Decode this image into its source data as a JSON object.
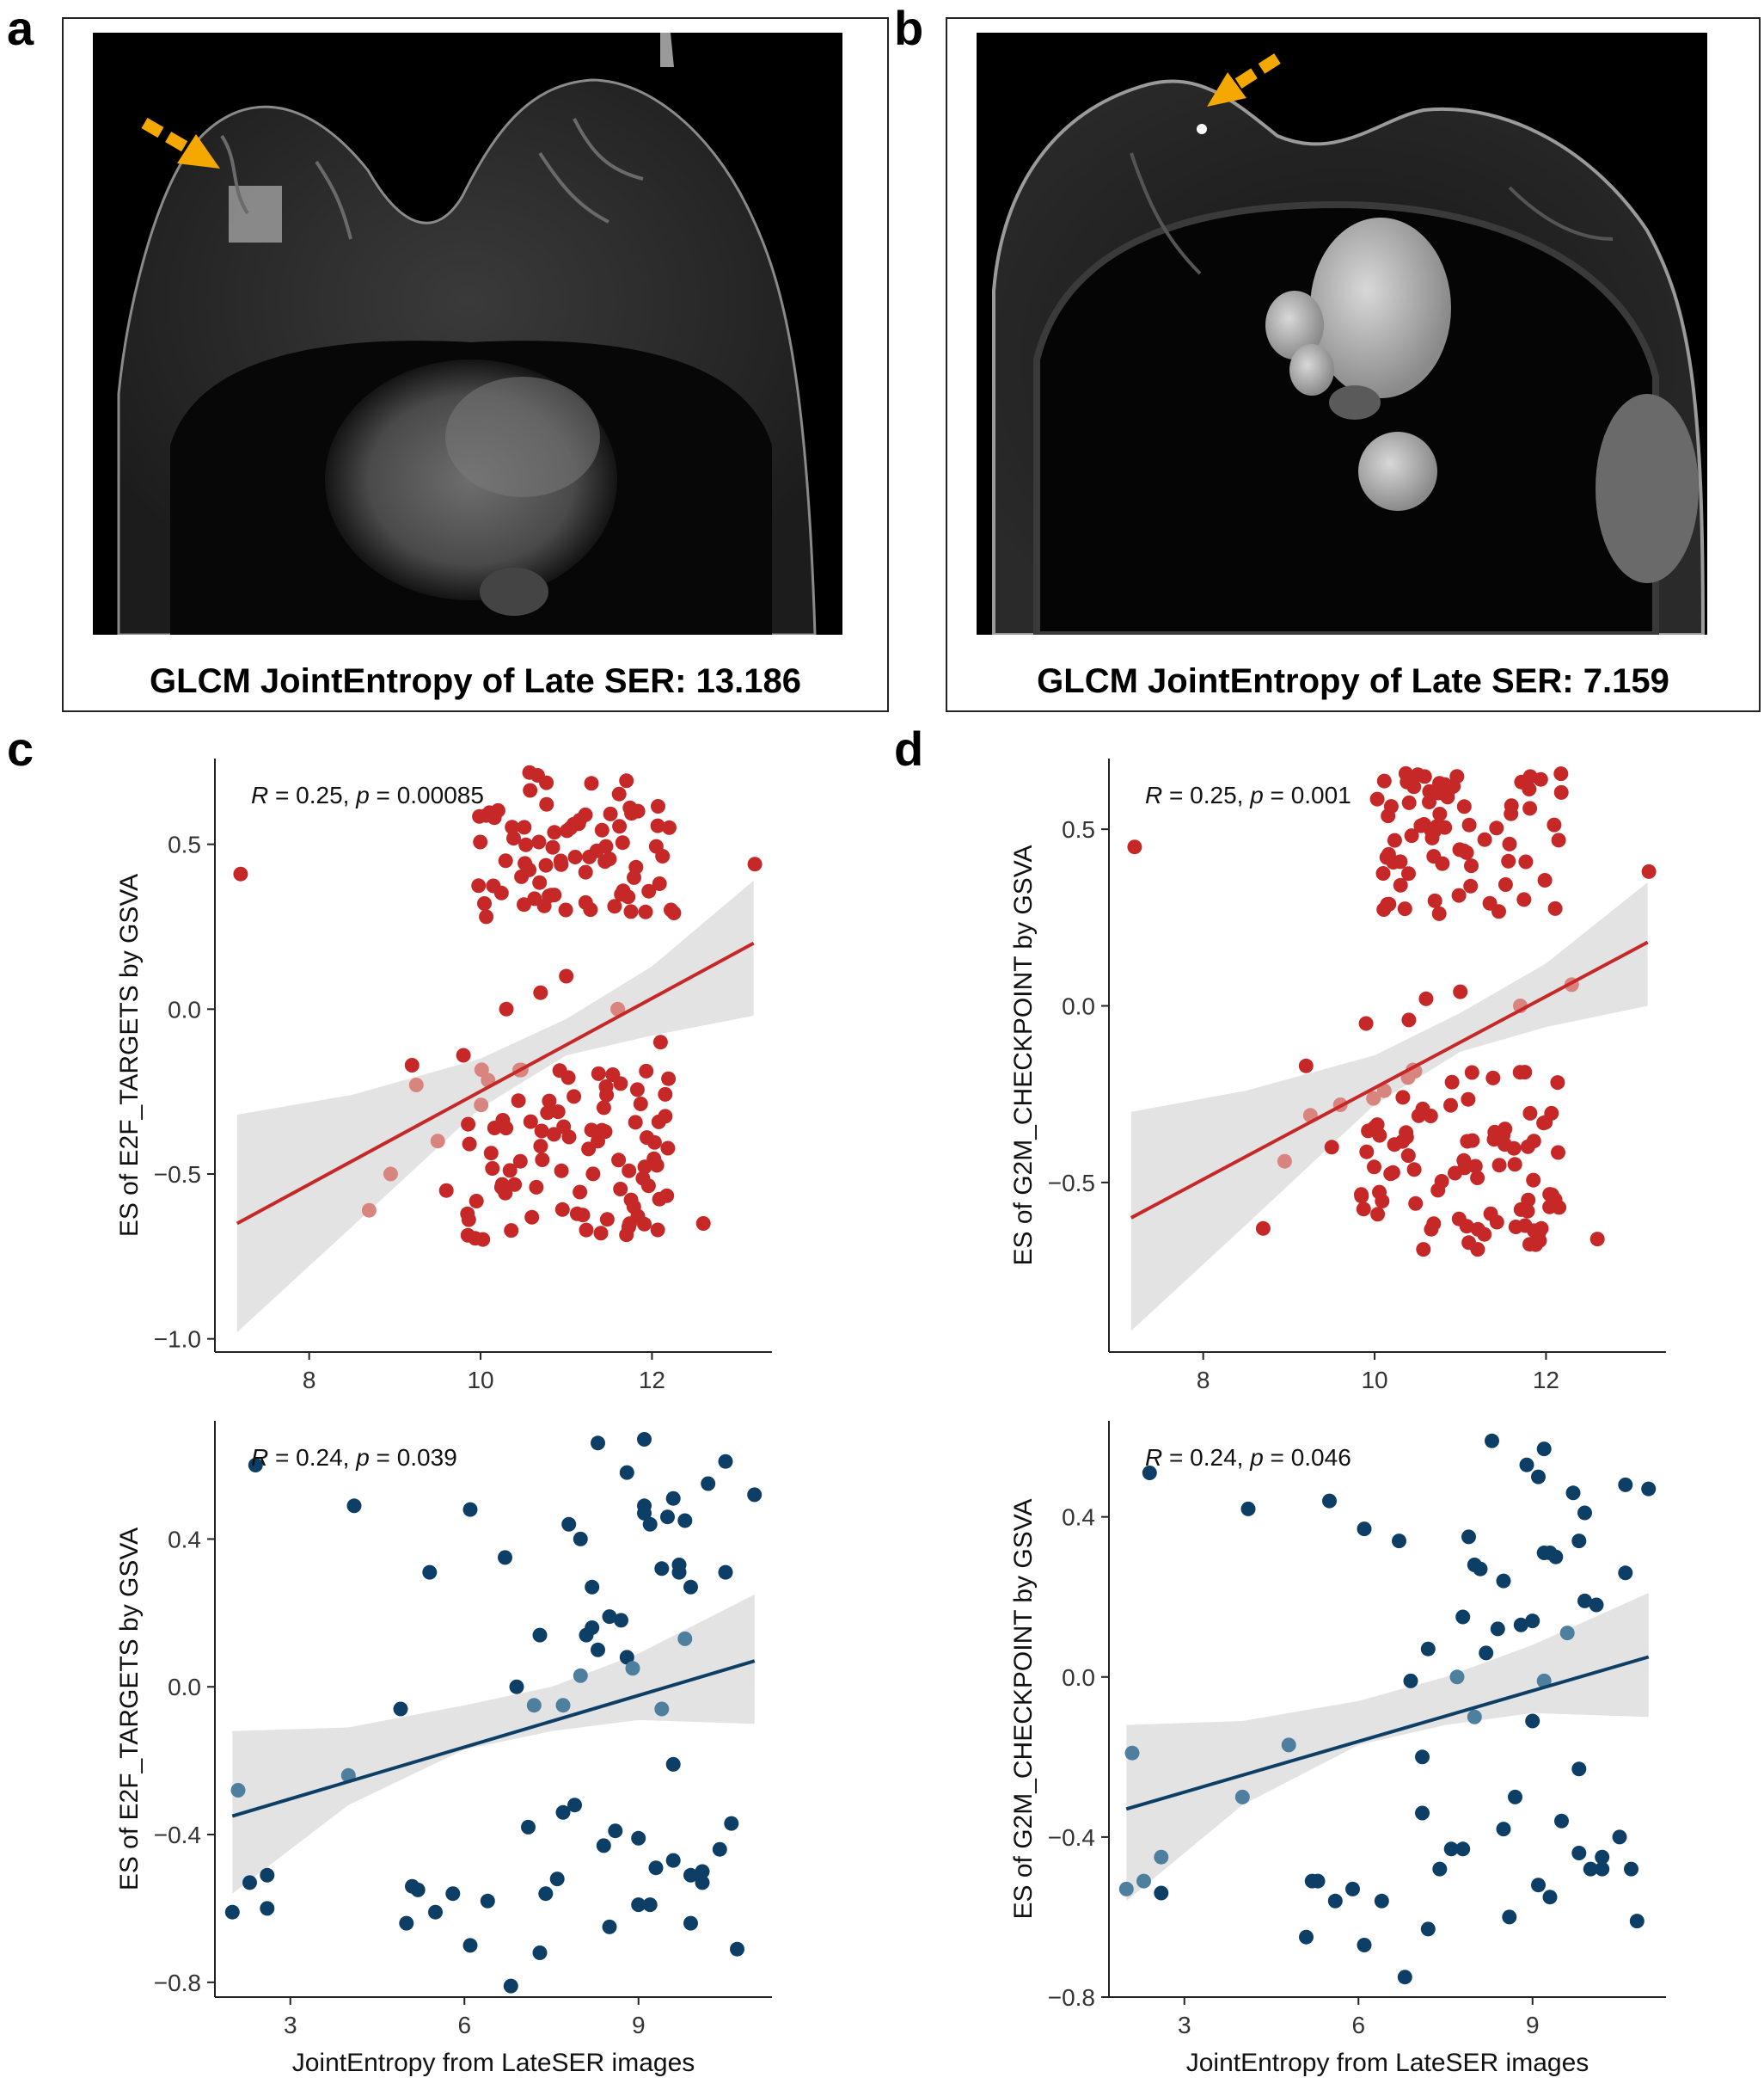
{
  "panels": {
    "a": {
      "letter": "a",
      "caption": "GLCM JointEntropy of Late SER: 13.186"
    },
    "b": {
      "letter": "b",
      "caption": "GLCM JointEntropy of Late SER: 7.159"
    },
    "c": {
      "letter": "c"
    },
    "d": {
      "letter": "d"
    }
  },
  "colors": {
    "red": "#c62828",
    "red_light": "#d9857f",
    "blue": "#0d3f66",
    "blue_light": "#4f7f9e",
    "band": "#e3e3e3",
    "arrow": "#f5a800"
  },
  "chart_data": [
    {
      "id": "c-top",
      "type": "scatter",
      "color": "red",
      "annotation": {
        "r": "R",
        "r_rest": " = 0.25, ",
        "p": "p",
        "p_rest": " = 0.00085"
      },
      "ylabel": "ES of E2F_TARGETS by GSVA",
      "xlabel": "",
      "xlim": [
        6.9,
        13.4
      ],
      "ylim": [
        -1.04,
        0.76
      ],
      "xticks": [
        8,
        10,
        12
      ],
      "xtick_labels": [
        "8",
        "10",
        "12"
      ],
      "yticks": [
        0.5,
        0.0,
        -0.5,
        -1.0
      ],
      "ytick_labels": [
        "0.5",
        "0.0",
        "−0.5",
        "−1.0"
      ],
      "fit": {
        "x0": 7.159,
        "y0": -0.65,
        "x1": 13.186,
        "y1": 0.2
      },
      "band": {
        "x": [
          7.159,
          8.5,
          10.0,
          11.0,
          12.0,
          13.186
        ],
        "lower": [
          -0.98,
          -0.66,
          -0.3,
          -0.14,
          -0.08,
          -0.02
        ],
        "upper": [
          -0.32,
          -0.26,
          -0.15,
          -0.03,
          0.13,
          0.39
        ]
      },
      "seed": 11,
      "n_top": 80,
      "n_bottom": 90,
      "top_range": {
        "x": [
          9.9,
          12.3
        ],
        "y": [
          0.28,
          0.72
        ]
      },
      "bottom_range": {
        "x": [
          9.8,
          12.2
        ],
        "y": [
          -0.7,
          -0.18
        ]
      },
      "extra_points": [
        [
          7.2,
          0.41
        ],
        [
          13.2,
          0.44
        ],
        [
          8.7,
          -0.61
        ],
        [
          9.2,
          -0.17
        ],
        [
          9.8,
          -0.14
        ],
        [
          12.6,
          -0.65
        ],
        [
          9.5,
          -0.4
        ],
        [
          8.95,
          -0.5
        ],
        [
          9.25,
          -0.23
        ],
        [
          9.6,
          -0.55
        ],
        [
          10.3,
          -0.0
        ],
        [
          10.7,
          0.05
        ],
        [
          11.0,
          0.1
        ],
        [
          11.6,
          -0.0
        ],
        [
          12.1,
          -0.1
        ]
      ]
    },
    {
      "id": "c-bottom",
      "type": "scatter",
      "color": "blue",
      "annotation": {
        "r": "R",
        "r_rest": " = 0.24, ",
        "p": "p",
        "p_rest": " = 0.039"
      },
      "ylabel": "ES of E2F_TARGETS by GSVA",
      "xlabel": "JointEntropy from LateSER images",
      "xlim": [
        1.7,
        11.3
      ],
      "ylim": [
        -0.84,
        0.72
      ],
      "xticks": [
        3,
        6,
        9
      ],
      "xtick_labels": [
        "3",
        "6",
        "9"
      ],
      "yticks": [
        0.4,
        0.0,
        -0.4,
        -0.8
      ],
      "ytick_labels": [
        "0.4",
        "0.0",
        "−0.4",
        "−0.8"
      ],
      "fit": {
        "x0": 2.0,
        "y0": -0.35,
        "x1": 11.0,
        "y1": 0.07
      },
      "band": {
        "x": [
          2.0,
          4.0,
          6.0,
          7.5,
          9.0,
          11.0
        ],
        "lower": [
          -0.56,
          -0.32,
          -0.17,
          -0.12,
          -0.09,
          -0.1
        ],
        "upper": [
          -0.12,
          -0.11,
          -0.05,
          0.0,
          0.09,
          0.25
        ]
      },
      "seed": 23,
      "n_top": 0,
      "n_bottom": 0,
      "extra_points": [
        [
          2.0,
          -0.61
        ],
        [
          2.1,
          -0.28
        ],
        [
          2.3,
          -0.53
        ],
        [
          2.4,
          0.6
        ],
        [
          2.6,
          -0.6
        ],
        [
          2.6,
          -0.51
        ],
        [
          4.0,
          -0.24
        ],
        [
          4.1,
          0.49
        ],
        [
          4.9,
          -0.06
        ],
        [
          5.0,
          -0.64
        ],
        [
          5.1,
          -0.54
        ],
        [
          5.2,
          -0.55
        ],
        [
          5.4,
          0.31
        ],
        [
          5.5,
          -0.61
        ],
        [
          5.8,
          -0.56
        ],
        [
          6.1,
          -0.7
        ],
        [
          6.1,
          0.48
        ],
        [
          6.4,
          -0.58
        ],
        [
          6.7,
          0.35
        ],
        [
          6.8,
          -0.81
        ],
        [
          6.9,
          0.0
        ],
        [
          7.1,
          -0.38
        ],
        [
          7.2,
          -0.05
        ],
        [
          7.3,
          0.14
        ],
        [
          7.3,
          -0.72
        ],
        [
          7.4,
          -0.56
        ],
        [
          7.6,
          -0.52
        ],
        [
          7.7,
          -0.05
        ],
        [
          7.7,
          -0.34
        ],
        [
          7.8,
          0.44
        ],
        [
          7.9,
          -0.32
        ],
        [
          8.0,
          0.4
        ],
        [
          8.0,
          0.03
        ],
        [
          8.1,
          0.14
        ],
        [
          8.2,
          0.27
        ],
        [
          8.2,
          0.16
        ],
        [
          8.3,
          0.66
        ],
        [
          8.3,
          0.1
        ],
        [
          8.4,
          -0.43
        ],
        [
          8.5,
          0.19
        ],
        [
          8.5,
          -0.65
        ],
        [
          8.6,
          -0.39
        ],
        [
          8.7,
          0.18
        ],
        [
          8.8,
          0.58
        ],
        [
          8.8,
          0.08
        ],
        [
          8.9,
          0.05
        ],
        [
          9.0,
          -0.41
        ],
        [
          9.0,
          -0.59
        ],
        [
          9.1,
          0.67
        ],
        [
          9.1,
          0.49
        ],
        [
          9.1,
          0.47
        ],
        [
          9.2,
          -0.59
        ],
        [
          9.2,
          0.44
        ],
        [
          9.3,
          -0.49
        ],
        [
          9.4,
          -0.06
        ],
        [
          9.5,
          0.46
        ],
        [
          9.6,
          0.51
        ],
        [
          9.6,
          -0.21
        ],
        [
          9.6,
          -0.47
        ],
        [
          9.7,
          0.31
        ],
        [
          9.7,
          0.33
        ],
        [
          9.8,
          0.45
        ],
        [
          9.8,
          0.13
        ],
        [
          9.9,
          0.27
        ],
        [
          9.9,
          -0.51
        ],
        [
          9.9,
          -0.64
        ],
        [
          10.1,
          -0.5
        ],
        [
          10.1,
          -0.53
        ],
        [
          10.2,
          0.55
        ],
        [
          10.4,
          -0.44
        ],
        [
          10.5,
          0.61
        ],
        [
          10.5,
          0.31
        ],
        [
          10.6,
          -0.37
        ],
        [
          10.7,
          -0.71
        ],
        [
          11.0,
          0.52
        ],
        [
          9.4,
          0.32
        ]
      ]
    },
    {
      "id": "d-top",
      "type": "scatter",
      "color": "red",
      "annotation": {
        "r": "R",
        "r_rest": " = 0.25, ",
        "p": "p",
        "p_rest": " = 0.001"
      },
      "ylabel": "ES of G2M_CHECKPOINT by GSVA",
      "xlabel": "",
      "xlim": [
        6.9,
        13.4
      ],
      "ylim": [
        -0.98,
        0.7
      ],
      "xticks": [
        8,
        10,
        12
      ],
      "xtick_labels": [
        "8",
        "10",
        "12"
      ],
      "yticks": [
        0.5,
        0.0,
        -0.5
      ],
      "ytick_labels": [
        "0.5",
        "0.0",
        "−0.5"
      ],
      "fit": {
        "x0": 7.159,
        "y0": -0.6,
        "x1": 13.186,
        "y1": 0.18
      },
      "band": {
        "x": [
          7.159,
          8.5,
          10.0,
          11.0,
          12.0,
          13.186
        ],
        "lower": [
          -0.92,
          -0.62,
          -0.28,
          -0.13,
          -0.06,
          -0.0
        ],
        "upper": [
          -0.3,
          -0.24,
          -0.14,
          -0.02,
          0.12,
          0.35
        ]
      },
      "seed": 37,
      "n_top": 75,
      "n_bottom": 90,
      "top_range": {
        "x": [
          10.0,
          12.3
        ],
        "y": [
          0.26,
          0.66
        ]
      },
      "bottom_range": {
        "x": [
          9.8,
          12.2
        ],
        "y": [
          -0.7,
          -0.18
        ]
      },
      "extra_points": [
        [
          7.2,
          0.45
        ],
        [
          13.2,
          0.38
        ],
        [
          8.7,
          -0.63
        ],
        [
          9.2,
          -0.17
        ],
        [
          9.9,
          -0.05
        ],
        [
          12.6,
          -0.66
        ],
        [
          9.5,
          -0.4
        ],
        [
          8.95,
          -0.44
        ],
        [
          9.25,
          -0.31
        ],
        [
          9.6,
          -0.28
        ],
        [
          10.4,
          -0.04
        ],
        [
          10.6,
          0.02
        ],
        [
          11.0,
          0.04
        ],
        [
          11.7,
          -0.0
        ],
        [
          12.3,
          0.06
        ]
      ]
    },
    {
      "id": "d-bottom",
      "type": "scatter",
      "color": "blue",
      "annotation": {
        "r": "R",
        "r_rest": " = 0.24, ",
        "p": "p",
        "p_rest": " = 0.046"
      },
      "ylabel": "ES of G2M_CHECKPOINT by GSVA",
      "xlabel": "JointEntropy from LateSER images",
      "xlim": [
        1.7,
        11.3
      ],
      "ylim": [
        -0.8,
        0.64
      ],
      "xticks": [
        3,
        6,
        9
      ],
      "xtick_labels": [
        "3",
        "6",
        "9"
      ],
      "yticks": [
        0.4,
        0.0,
        -0.4,
        -0.8
      ],
      "ytick_labels": [
        "0.4",
        "0.0",
        "−0.4",
        "−0.8"
      ],
      "fit": {
        "x0": 2.0,
        "y0": -0.33,
        "x1": 11.0,
        "y1": 0.05
      },
      "band": {
        "x": [
          2.0,
          4.0,
          6.0,
          7.5,
          9.0,
          11.0
        ],
        "lower": [
          -0.56,
          -0.32,
          -0.17,
          -0.12,
          -0.09,
          -0.1
        ],
        "upper": [
          -0.12,
          -0.11,
          -0.06,
          0.0,
          0.08,
          0.21
        ]
      },
      "seed": 51,
      "n_top": 0,
      "n_bottom": 0,
      "extra_points": [
        [
          2.0,
          -0.53
        ],
        [
          2.1,
          -0.19
        ],
        [
          2.3,
          -0.51
        ],
        [
          2.4,
          0.51
        ],
        [
          2.6,
          -0.54
        ],
        [
          2.6,
          -0.45
        ],
        [
          4.0,
          -0.3
        ],
        [
          4.1,
          0.42
        ],
        [
          4.8,
          -0.17
        ],
        [
          5.1,
          -0.65
        ],
        [
          5.2,
          -0.51
        ],
        [
          5.3,
          -0.51
        ],
        [
          5.5,
          0.44
        ],
        [
          5.6,
          -0.56
        ],
        [
          5.9,
          -0.53
        ],
        [
          6.1,
          -0.67
        ],
        [
          6.1,
          0.37
        ],
        [
          6.4,
          -0.56
        ],
        [
          6.7,
          0.34
        ],
        [
          6.8,
          -0.75
        ],
        [
          6.9,
          -0.01
        ],
        [
          7.1,
          -0.34
        ],
        [
          7.1,
          -0.2
        ],
        [
          7.2,
          0.07
        ],
        [
          7.2,
          -0.63
        ],
        [
          7.4,
          -0.48
        ],
        [
          7.6,
          -0.43
        ],
        [
          7.7,
          -0.0
        ],
        [
          7.8,
          0.15
        ],
        [
          7.8,
          -0.43
        ],
        [
          7.9,
          0.35
        ],
        [
          8.0,
          -0.1
        ],
        [
          8.0,
          0.28
        ],
        [
          8.1,
          0.27
        ],
        [
          8.2,
          0.06
        ],
        [
          8.3,
          0.59
        ],
        [
          8.4,
          0.12
        ],
        [
          8.5,
          -0.38
        ],
        [
          8.5,
          0.24
        ],
        [
          8.6,
          -0.6
        ],
        [
          8.7,
          -0.3
        ],
        [
          8.8,
          0.13
        ],
        [
          8.9,
          0.53
        ],
        [
          9.0,
          0.14
        ],
        [
          9.0,
          -0.11
        ],
        [
          9.1,
          -0.52
        ],
        [
          9.1,
          0.5
        ],
        [
          9.2,
          0.57
        ],
        [
          9.2,
          -0.01
        ],
        [
          9.3,
          -0.55
        ],
        [
          9.3,
          0.31
        ],
        [
          9.4,
          0.3
        ],
        [
          9.5,
          -0.36
        ],
        [
          9.6,
          0.11
        ],
        [
          9.7,
          0.46
        ],
        [
          9.8,
          -0.23
        ],
        [
          9.8,
          0.34
        ],
        [
          9.9,
          0.41
        ],
        [
          9.9,
          0.19
        ],
        [
          10.0,
          -0.48
        ],
        [
          10.1,
          0.18
        ],
        [
          10.2,
          -0.45
        ],
        [
          10.2,
          -0.48
        ],
        [
          10.5,
          -0.4
        ],
        [
          10.6,
          0.48
        ],
        [
          10.6,
          0.26
        ],
        [
          10.7,
          -0.48
        ],
        [
          10.8,
          -0.61
        ],
        [
          11.0,
          0.47
        ],
        [
          9.8,
          -0.44
        ],
        [
          9.2,
          0.31
        ]
      ]
    }
  ]
}
